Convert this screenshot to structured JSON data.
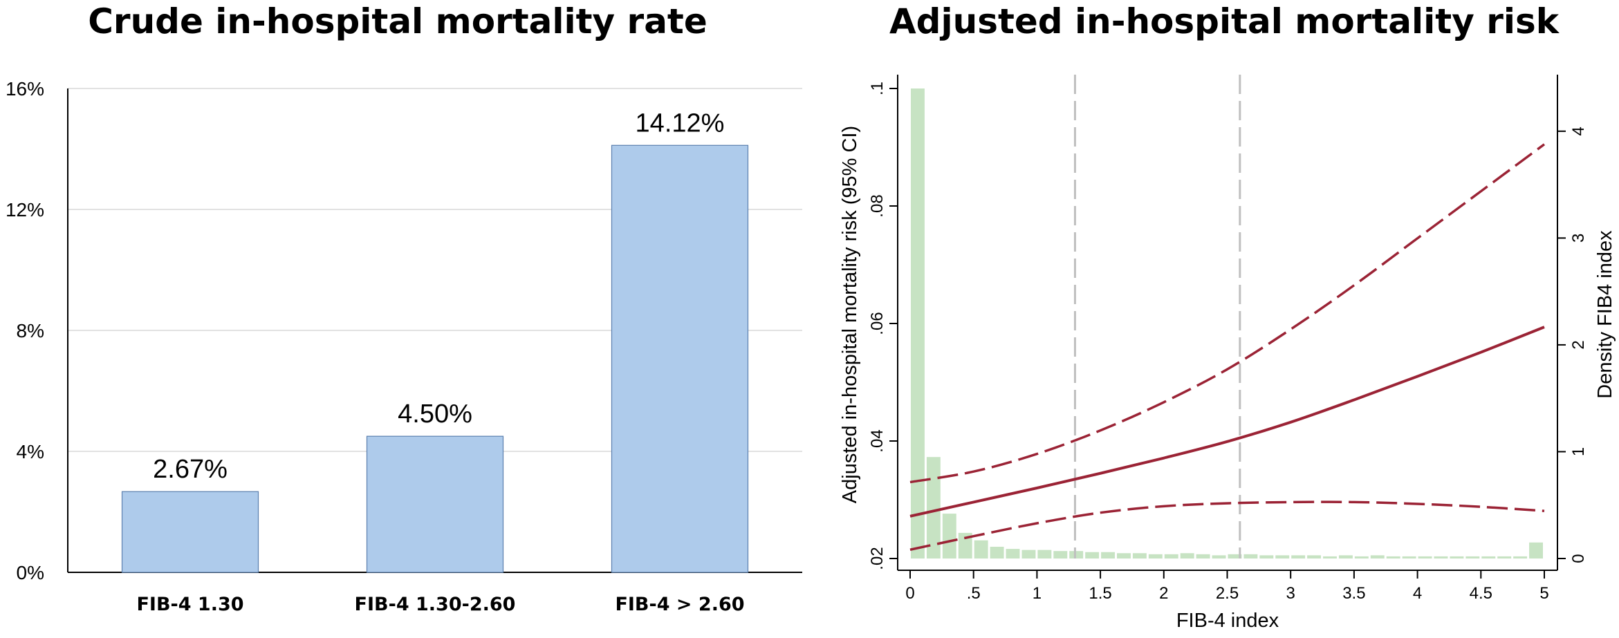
{
  "chart_data": [
    {
      "type": "bar",
      "title": "Crude in-hospital mortality rate",
      "categories": [
        "FIB-4 1.30",
        "FIB-4 1.30-2.60",
        "FIB-4 > 2.60"
      ],
      "values": [
        2.67,
        4.5,
        14.12
      ],
      "data_labels": [
        "2.67%",
        "4.50%",
        "14.12%"
      ],
      "ylim": [
        0,
        16
      ],
      "yticks": [
        0,
        4,
        8,
        12,
        16
      ],
      "ytick_labels": [
        "0%",
        "4%",
        "8%",
        "12%",
        "16%"
      ],
      "grid": true,
      "colors": {
        "bar": "#aecbeb",
        "bar_edge": "#5a7fae"
      }
    },
    {
      "type": "line",
      "title": "Adjusted in-hospital mortality risk",
      "xlabel": "FIB-4 index",
      "ylabel": "Adjusted in-hospital mortality risk (95% CI)",
      "y2label": "Density FIB4 index",
      "xlim": [
        0,
        5
      ],
      "ylim": [
        0.02,
        0.1
      ],
      "y2lim": [
        0,
        4.4
      ],
      "xticks": [
        0,
        0.5,
        1,
        1.5,
        2,
        2.5,
        3,
        3.5,
        4,
        4.5,
        5
      ],
      "xtick_labels": [
        "0",
        ".5",
        "1",
        "1.5",
        "2",
        "2.5",
        "3",
        "3.5",
        "4",
        "4.5",
        "5"
      ],
      "yticks": [
        0.02,
        0.04,
        0.06,
        0.08,
        0.1
      ],
      "ytick_labels": [
        ".02",
        ".04",
        ".06",
        ".08",
        ".1"
      ],
      "y2ticks": [
        0,
        1,
        2,
        3,
        4
      ],
      "y2tick_labels": [
        "0",
        "1",
        "2",
        "3",
        "4"
      ],
      "reference_lines_x": [
        1.3,
        2.6
      ],
      "series": [
        {
          "style": "solid",
          "x": [
            0,
            0.5,
            1,
            1.5,
            2,
            2.5,
            3,
            3.5,
            4,
            4.5,
            5
          ],
          "y": [
            0.0272,
            0.0296,
            0.032,
            0.0345,
            0.0371,
            0.0399,
            0.0432,
            0.047,
            0.051,
            0.0551,
            0.0594
          ]
        },
        {
          "style": "dashed",
          "x": [
            0,
            0.5,
            1,
            1.5,
            2,
            2.5,
            3,
            3.5,
            4,
            4.5,
            5
          ],
          "y": [
            0.033,
            0.0348,
            0.0378,
            0.0418,
            0.0466,
            0.0522,
            0.059,
            0.0665,
            0.0745,
            0.0825,
            0.0905
          ]
        },
        {
          "style": "dashed",
          "x": [
            0,
            0.5,
            1,
            1.5,
            2,
            2.5,
            3,
            3.5,
            4,
            4.5,
            5
          ],
          "y": [
            0.0215,
            0.0238,
            0.026,
            0.0278,
            0.0289,
            0.0294,
            0.0296,
            0.0296,
            0.0293,
            0.0288,
            0.0281
          ]
        }
      ],
      "histogram": {
        "bin_width": 0.125,
        "bin_start": 0,
        "density": [
          4.4,
          0.95,
          0.42,
          0.24,
          0.17,
          0.11,
          0.09,
          0.08,
          0.08,
          0.07,
          0.07,
          0.06,
          0.06,
          0.05,
          0.05,
          0.04,
          0.04,
          0.05,
          0.04,
          0.03,
          0.04,
          0.04,
          0.03,
          0.03,
          0.03,
          0.03,
          0.02,
          0.03,
          0.02,
          0.03,
          0.02,
          0.02,
          0.02,
          0.02,
          0.02,
          0.02,
          0.02,
          0.02,
          0.02,
          0.15
        ]
      },
      "colors": {
        "line": "#9b2335",
        "histogram": "#c7e3c3",
        "reference": "#bfbfbf"
      }
    }
  ]
}
